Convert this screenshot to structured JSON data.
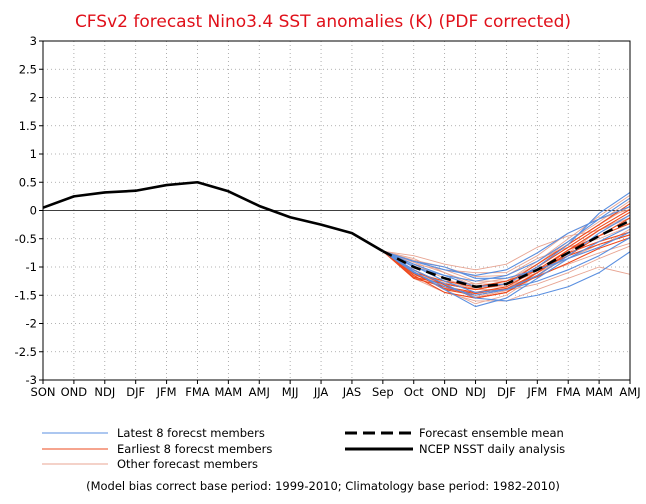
{
  "chart_data": {
    "type": "line",
    "title": "CFSv2 forecast Nino3.4 SST anomalies (K) (PDF corrected)",
    "xlabel": "",
    "ylabel": "",
    "ylim": [
      -3,
      3
    ],
    "yticks": [
      "3",
      "2.5",
      "2",
      "1.5",
      "1",
      "0.5",
      "0",
      "-0.5",
      "-1",
      "-1.5",
      "-2",
      "-2.5",
      "-3"
    ],
    "categories": [
      "SON",
      "OND",
      "NDJ",
      "DJF",
      "JFM",
      "FMA",
      "MAM",
      "AMJ",
      "MJJ",
      "JJA",
      "JAS",
      "Sep",
      "Oct",
      "OND",
      "NDJ",
      "DJF",
      "JFM",
      "FMA",
      "MAM",
      "AMJ"
    ],
    "grid": true,
    "zero_line": true,
    "series": [
      {
        "name": "NCEP NSST daily analysis",
        "x": [
          0,
          1,
          2,
          3,
          4,
          5,
          6,
          7,
          8,
          9,
          10,
          11
        ],
        "values": [
          0.05,
          0.25,
          0.32,
          0.35,
          0.45,
          0.5,
          0.34,
          0.08,
          -0.12,
          -0.25,
          -0.4,
          -0.72
        ]
      },
      {
        "name": "Forecast ensemble mean",
        "x": [
          11,
          12,
          13,
          14,
          15,
          16,
          17,
          18,
          19
        ],
        "values": [
          -0.72,
          -1.0,
          -1.2,
          -1.35,
          -1.3,
          -1.05,
          -0.75,
          -0.45,
          -0.18
        ]
      }
    ],
    "ensemble": {
      "x": [
        11,
        12,
        13,
        14,
        15,
        16,
        17,
        18,
        19
      ],
      "latest": {
        "name": "Latest 8 forecst members",
        "color": "#5a8fe0",
        "offsets": [
          [
            0,
            0.05,
            0.05,
            0.0,
            0.0,
            0.05,
            0.15,
            0.4,
            0.5
          ],
          [
            0,
            -0.05,
            -0.1,
            -0.2,
            -0.3,
            -0.45,
            -0.6,
            -0.65,
            -0.55
          ],
          [
            0,
            0.1,
            0.15,
            0.2,
            0.25,
            0.3,
            0.35,
            0.3,
            0.25
          ],
          [
            0,
            -0.08,
            -0.2,
            -0.35,
            -0.25,
            -0.15,
            -0.1,
            -0.1,
            -0.1
          ],
          [
            0,
            0.0,
            0.05,
            0.1,
            0.15,
            0.15,
            0.2,
            0.3,
            0.4
          ],
          [
            0,
            -0.1,
            -0.15,
            -0.15,
            -0.1,
            -0.1,
            -0.05,
            0.05,
            0.1
          ],
          [
            0,
            0.02,
            -0.05,
            -0.1,
            -0.1,
            -0.2,
            -0.3,
            -0.35,
            -0.3
          ],
          [
            0,
            0.1,
            0.2,
            0.15,
            0.1,
            0.0,
            -0.1,
            -0.2,
            -0.2
          ]
        ]
      },
      "earliest": {
        "name": "Earliest 8 forecst members",
        "color": "#ee4a1e",
        "offsets": [
          [
            0,
            -0.1,
            -0.2,
            -0.15,
            -0.1,
            -0.05,
            0.0,
            -0.1,
            -0.2
          ],
          [
            0,
            -0.15,
            -0.25,
            -0.2,
            -0.15,
            -0.1,
            -0.05,
            0.0,
            0.05
          ],
          [
            0,
            -0.05,
            -0.1,
            -0.05,
            0.0,
            0.1,
            0.15,
            0.2,
            0.3
          ],
          [
            0,
            -0.2,
            -0.15,
            -0.1,
            -0.05,
            0.0,
            -0.05,
            -0.15,
            -0.25
          ],
          [
            0,
            -0.1,
            -0.05,
            0.0,
            0.05,
            0.0,
            0.05,
            0.1,
            0.15
          ],
          [
            0,
            -0.12,
            -0.18,
            -0.12,
            -0.08,
            -0.12,
            -0.18,
            -0.22,
            -0.3
          ],
          [
            0,
            -0.05,
            -0.12,
            -0.2,
            -0.15,
            -0.05,
            0.05,
            0.0,
            -0.05
          ],
          [
            0,
            -0.18,
            -0.1,
            -0.05,
            0.0,
            0.05,
            0.1,
            0.15,
            0.2
          ]
        ]
      },
      "other": {
        "name": "Other forecast members",
        "color": "#e8a593",
        "offsets": [
          [
            0,
            0.2,
            0.25,
            0.3,
            0.35,
            0.4,
            0.3,
            0.1,
            0.1
          ],
          [
            0,
            -0.2,
            -0.25,
            -0.25,
            -0.3,
            -0.35,
            -0.45,
            -0.55,
            -0.95
          ],
          [
            0,
            0.1,
            0.15,
            0.25,
            0.2,
            0.25,
            0.35,
            0.3,
            0.2
          ],
          [
            0,
            -0.1,
            -0.2,
            -0.3,
            -0.2,
            -0.1,
            -0.2,
            -0.3,
            -0.4
          ],
          [
            0,
            0.05,
            0.15,
            0.1,
            0.05,
            0.15,
            0.25,
            0.35,
            0.45
          ],
          [
            0,
            0.15,
            0.1,
            0.0,
            -0.05,
            -0.1,
            0.0,
            0.1,
            0.05
          ],
          [
            0,
            -0.15,
            -0.05,
            0.05,
            0.1,
            0.0,
            -0.1,
            -0.2,
            -0.15
          ],
          [
            0,
            0.05,
            0.0,
            -0.05,
            -0.1,
            0.05,
            0.15,
            0.2,
            0.25
          ],
          [
            0,
            0.12,
            0.2,
            0.18,
            0.15,
            0.2,
            0.1,
            -0.05,
            -0.1
          ],
          [
            0,
            -0.05,
            -0.15,
            -0.18,
            -0.12,
            -0.25,
            -0.35,
            -0.4,
            -0.45
          ],
          [
            0,
            0.08,
            0.1,
            0.05,
            0.0,
            -0.05,
            -0.1,
            -0.15,
            -0.25
          ],
          [
            0,
            -0.12,
            -0.08,
            -0.02,
            0.05,
            0.1,
            0.2,
            0.25,
            0.35
          ]
        ]
      }
    }
  },
  "legend": {
    "latest": "Latest 8 forecst members",
    "earliest": "Earliest 8 forecst members",
    "other": "Other forecast members",
    "mean": "Forecast ensemble mean",
    "analysis": "NCEP NSST daily analysis"
  },
  "footnote": "(Model bias correct base period: 1999-2010; Climatology base period: 1982-2010)",
  "colors": {
    "title": "#e0101a",
    "latest": "#5a8fe0",
    "earliest": "#ee4a1e",
    "other": "#e8a593",
    "mean": "#000000",
    "analysis": "#000000"
  }
}
